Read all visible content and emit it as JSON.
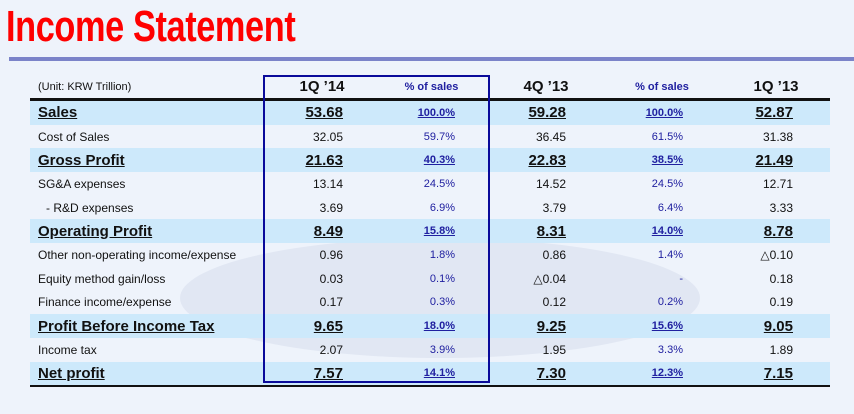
{
  "title": "Income Statement",
  "unit": "(Unit: KRW Trillion)",
  "headers": [
    "1Q ’14",
    "% of sales",
    "4Q ’13",
    "% of sales",
    "1Q ’13"
  ],
  "rows": [
    {
      "label": "Sales",
      "v1": "53.68",
      "p1": "100.0%",
      "v2": "59.28",
      "p2": "100.0%",
      "v3": "52.87"
    },
    {
      "label": "Cost of Sales",
      "v1": "32.05",
      "p1": "59.7%",
      "v2": "36.45",
      "p2": "61.5%",
      "v3": "31.38"
    },
    {
      "label": "Gross Profit",
      "v1": "21.63",
      "p1": "40.3%",
      "v2": "22.83",
      "p2": "38.5%",
      "v3": "21.49"
    },
    {
      "label": "SG&A expenses",
      "v1": "13.14",
      "p1": "24.5%",
      "v2": "14.52",
      "p2": "24.5%",
      "v3": "12.71"
    },
    {
      "label": "- R&D expenses",
      "v1": "3.69",
      "p1": "6.9%",
      "v2": "3.79",
      "p2": "6.4%",
      "v3": "3.33"
    },
    {
      "label": "Operating Profit",
      "v1": "8.49",
      "p1": "15.8%",
      "v2": "8.31",
      "p2": "14.0%",
      "v3": "8.78"
    },
    {
      "label": "Other non-operating income/expense",
      "v1": "0.96",
      "p1": "1.8%",
      "v2": "0.86",
      "p2": "1.4%",
      "v3": "△0.10"
    },
    {
      "label": "Equity method gain/loss",
      "v1": "0.03",
      "p1": "0.1%",
      "v2": "△0.04",
      "p2": "-",
      "v3": "0.18"
    },
    {
      "label": "Finance income/expense",
      "v1": "0.17",
      "p1": "0.3%",
      "v2": "0.12",
      "p2": "0.2%",
      "v3": "0.19"
    },
    {
      "label": "Profit Before Income Tax",
      "v1": "9.65",
      "p1": "18.0%",
      "v2": "9.25",
      "p2": "15.6%",
      "v3": "9.05"
    },
    {
      "label": "Income tax",
      "v1": "2.07",
      "p1": "3.9%",
      "v2": "1.95",
      "p2": "3.3%",
      "v3": "1.89"
    },
    {
      "label": "Net profit",
      "v1": "7.57",
      "p1": "14.1%",
      "v2": "7.30",
      "p2": "12.3%",
      "v3": "7.15"
    }
  ],
  "colors": {
    "title": "#ff0000",
    "highlight": "#cde9fb",
    "box": "#0a0a9a",
    "pct": "#2020a0"
  }
}
